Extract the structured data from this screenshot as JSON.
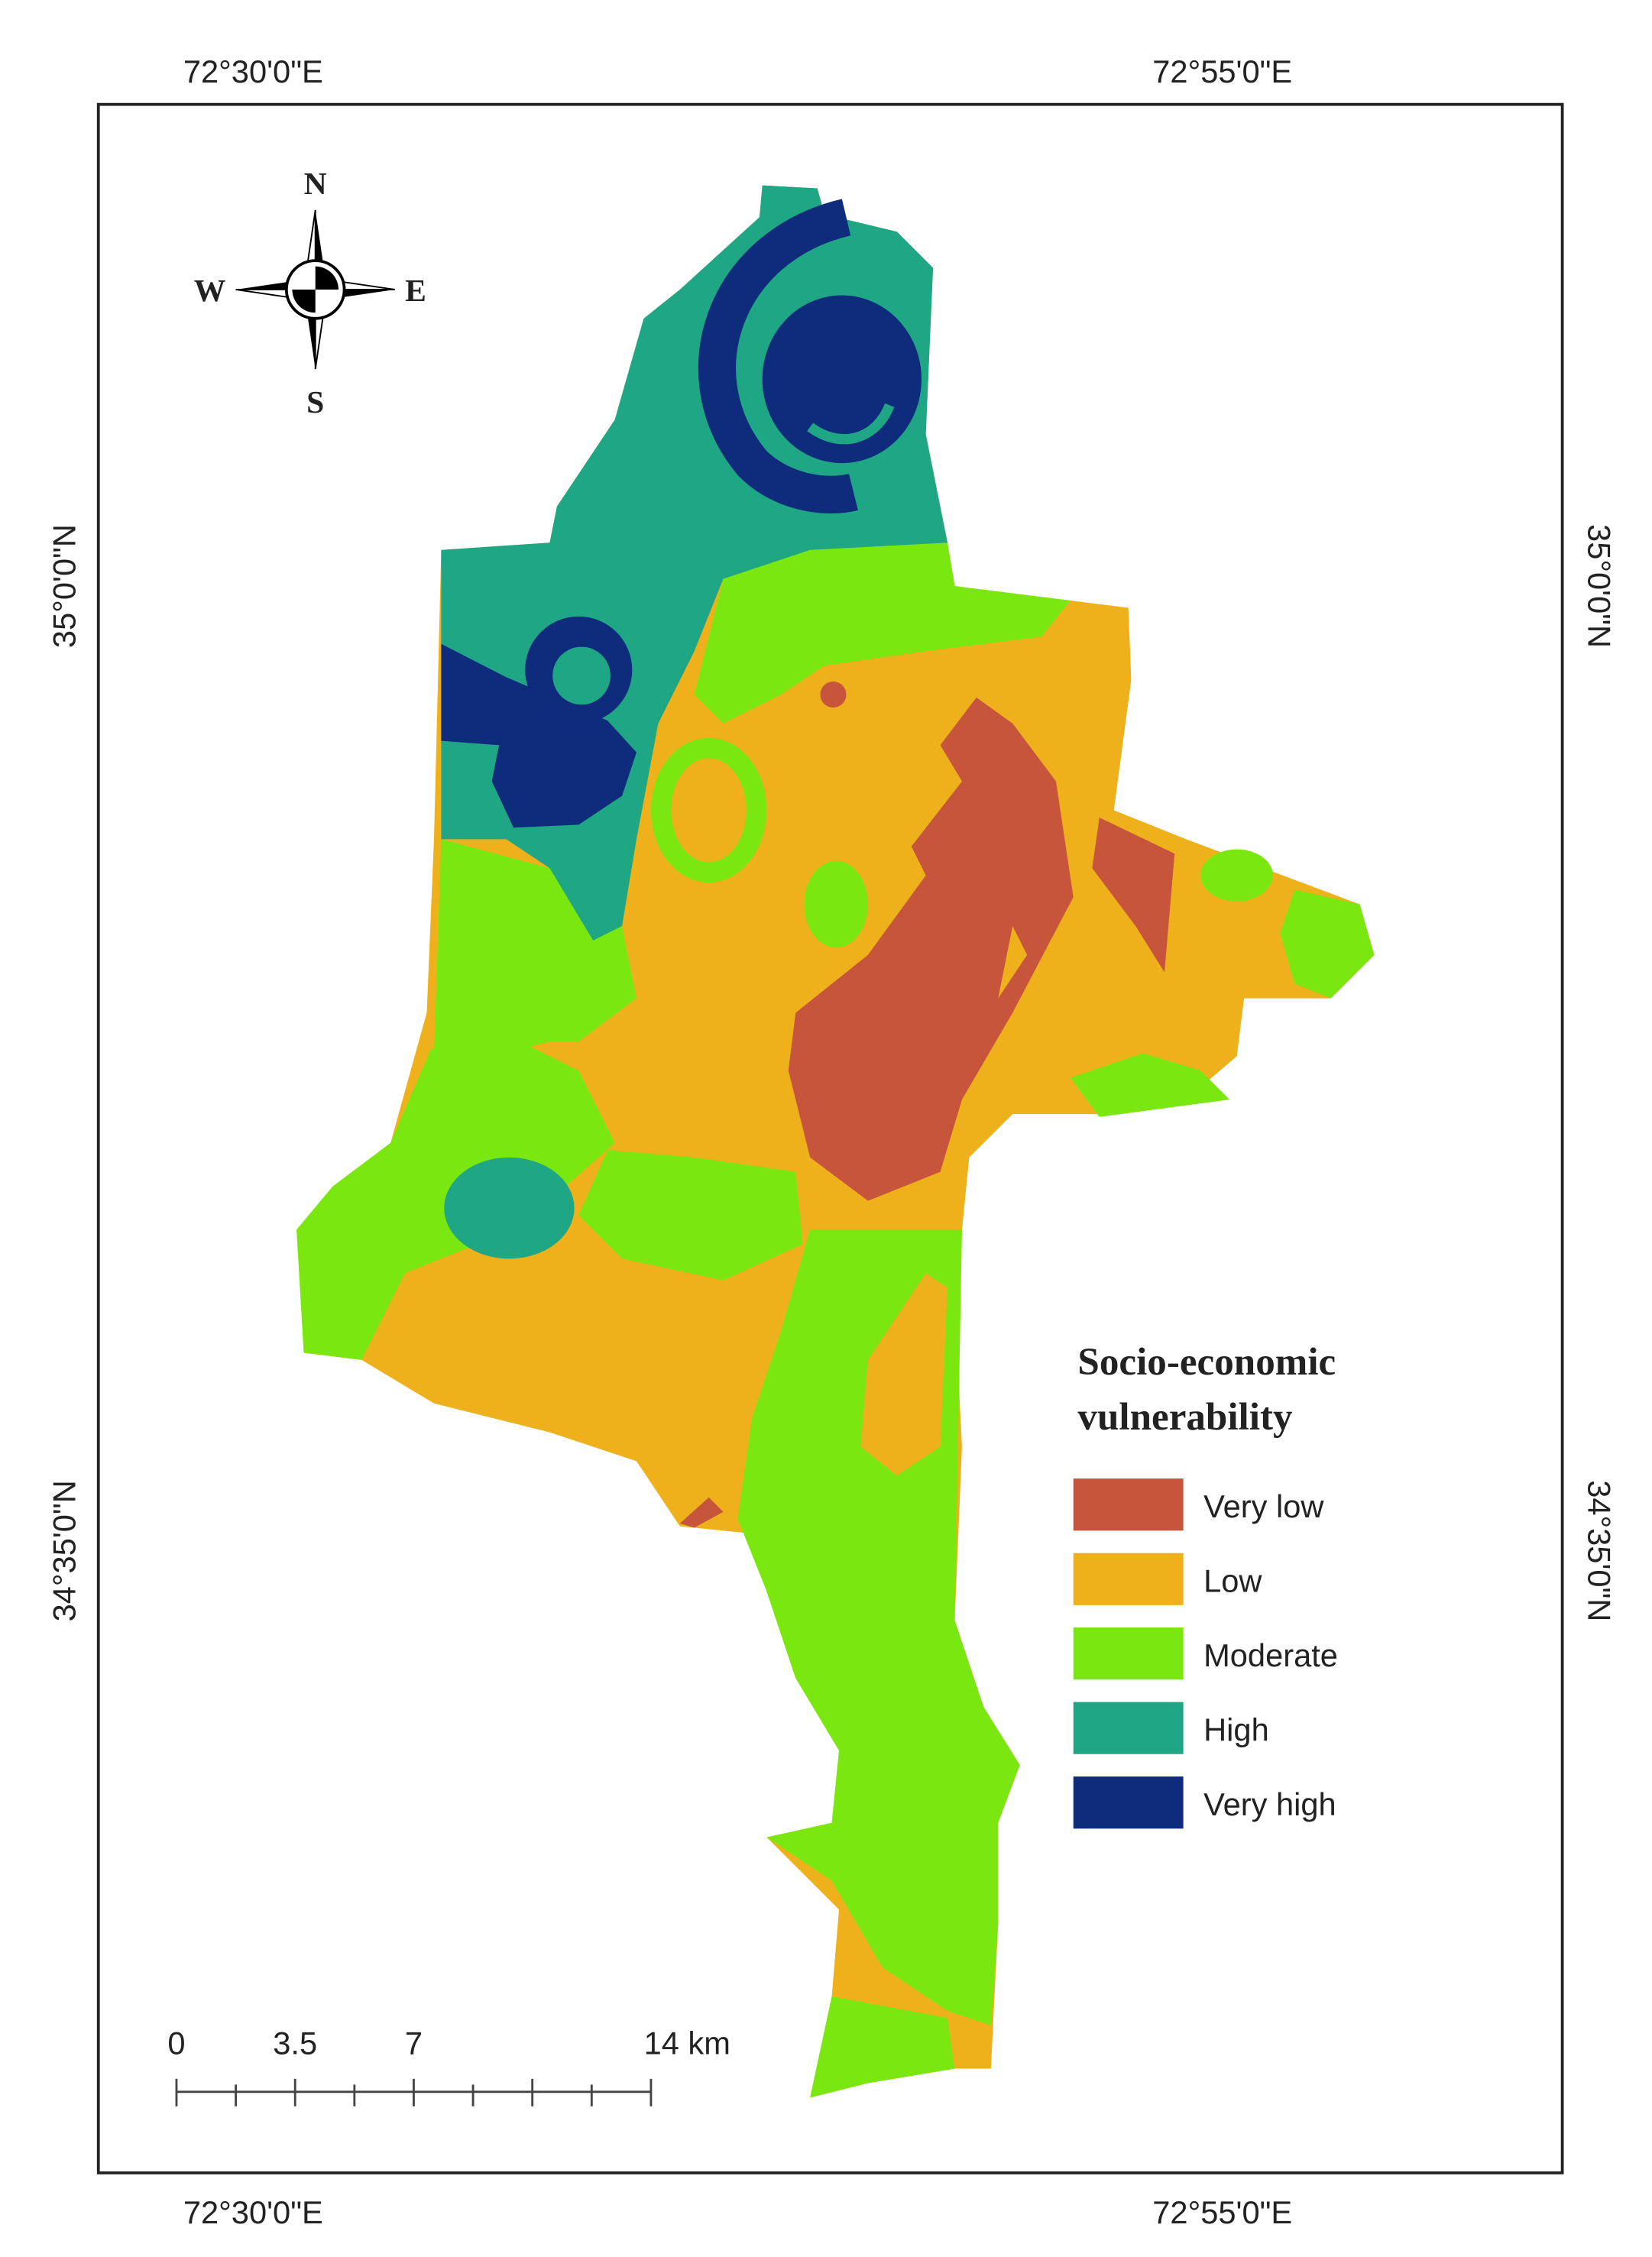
{
  "graticule": {
    "top": [
      "72°30'0\"E",
      "72°55'0\"E"
    ],
    "bottom": [
      "72°30'0\"E",
      "72°55'0\"E"
    ],
    "left": [
      "35°0'0\"N",
      "34°35'0\"N"
    ],
    "right": [
      "35°0'0\"N",
      "34°35'0\"N"
    ]
  },
  "compass": {
    "north": "N",
    "south": "S",
    "east": "E",
    "west": "W"
  },
  "legend": {
    "title": [
      "Socio-economic",
      "vulnerability"
    ],
    "items": [
      {
        "label": "Very low",
        "color": "#c7553c"
      },
      {
        "label": "Low",
        "color": "#eeb11c"
      },
      {
        "label": "Moderate",
        "color": "#7ae810"
      },
      {
        "label": "High",
        "color": "#1fa684"
      },
      {
        "label": "Very high",
        "color": "#0e2b7c"
      }
    ]
  },
  "scale_bar": {
    "labels": [
      "0",
      "3.5",
      "7",
      "14 km"
    ]
  }
}
